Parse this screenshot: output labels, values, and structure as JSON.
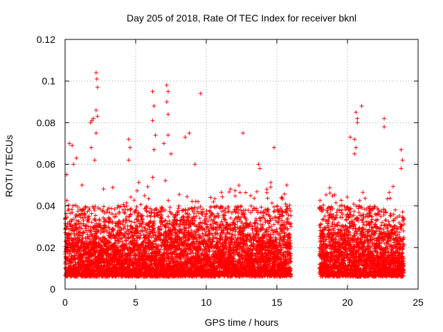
{
  "chart_data": {
    "type": "scatter",
    "title": "Day 205 of 2018, Rate Of TEC Index for receiver bknl",
    "xlabel": "GPS time / hours",
    "ylabel": "ROTI / TECUs",
    "xlim": [
      0,
      25
    ],
    "ylim": [
      0,
      0.12
    ],
    "grid": true,
    "marker": "+",
    "color": "#ff0000",
    "x_ticks": [
      0,
      5,
      10,
      15,
      20,
      25
    ],
    "x_tick_labels": [
      "0",
      "5",
      "10",
      "15",
      "20",
      "25"
    ],
    "y_ticks": [
      0,
      0.02,
      0.04,
      0.06,
      0.08,
      0.1,
      0.12
    ],
    "y_tick_labels": [
      "0",
      "0.02",
      "0.04",
      "0.06",
      "0.08",
      "0.1",
      "0.12"
    ],
    "data_gap_hours": [
      16,
      18
    ],
    "series": [
      {
        "name": "ROTI",
        "points": [
          [
            0.1,
            0.055
          ],
          [
            0.3,
            0.07
          ],
          [
            0.5,
            0.069
          ],
          [
            0.6,
            0.06
          ],
          [
            0.8,
            0.063
          ],
          [
            1.2,
            0.05
          ],
          [
            1.8,
            0.08
          ],
          [
            1.9,
            0.081
          ],
          [
            2.0,
            0.082
          ],
          [
            1.85,
            0.068
          ],
          [
            2.1,
            0.062
          ],
          [
            2.2,
            0.104
          ],
          [
            2.25,
            0.101
          ],
          [
            2.3,
            0.097
          ],
          [
            2.2,
            0.086
          ],
          [
            2.3,
            0.083
          ],
          [
            2.2,
            0.075
          ],
          [
            4.5,
            0.072
          ],
          [
            4.6,
            0.068
          ],
          [
            4.5,
            0.062
          ],
          [
            6.2,
            0.095
          ],
          [
            6.3,
            0.088
          ],
          [
            6.2,
            0.081
          ],
          [
            6.4,
            0.074
          ],
          [
            6.3,
            0.067
          ],
          [
            7.0,
            0.07
          ],
          [
            7.2,
            0.098
          ],
          [
            7.3,
            0.095
          ],
          [
            7.2,
            0.09
          ],
          [
            7.3,
            0.084
          ],
          [
            7.3,
            0.074
          ],
          [
            7.5,
            0.065
          ],
          [
            8.5,
            0.073
          ],
          [
            8.8,
            0.075
          ],
          [
            9.6,
            0.094
          ],
          [
            9.2,
            0.06
          ],
          [
            12.6,
            0.075
          ],
          [
            13.7,
            0.06
          ],
          [
            13.8,
            0.058
          ],
          [
            14.8,
            0.068
          ],
          [
            15.7,
            0.05
          ],
          [
            20.2,
            0.073
          ],
          [
            20.5,
            0.072
          ],
          [
            20.6,
            0.085
          ],
          [
            20.7,
            0.082
          ],
          [
            20.7,
            0.08
          ],
          [
            20.6,
            0.068
          ],
          [
            20.5,
            0.065
          ],
          [
            21.0,
            0.088
          ],
          [
            22.6,
            0.082
          ],
          [
            22.6,
            0.078
          ],
          [
            23.8,
            0.067
          ],
          [
            23.9,
            0.062
          ],
          [
            23.8,
            0.058
          ]
        ]
      }
    ]
  }
}
